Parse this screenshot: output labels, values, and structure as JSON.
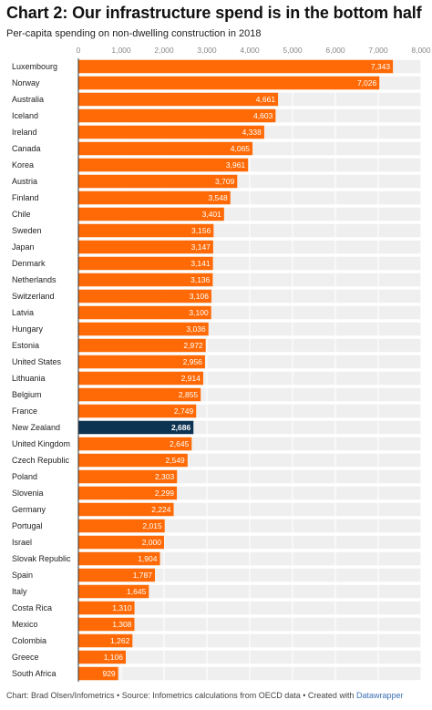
{
  "header": {
    "title": "Chart 2: Our infrastructure spend is in the bottom half",
    "subtitle": "Per-capita spending on non-dwelling construction in 2018"
  },
  "footer": {
    "text": "Chart: Brad Olsen/Infometrics • Source: Infometrics calculations from OECD data • Created with ",
    "tool": "Datawrapper"
  },
  "colors": {
    "bar": "#ff6a06",
    "highlight": "#0d3353",
    "row_bg": "#efefef",
    "grid": "#ffffff"
  },
  "chart_data": {
    "type": "bar",
    "orientation": "horizontal",
    "title": "Chart 2: Our infrastructure spend is in the bottom half",
    "subtitle": "Per-capita spending on non-dwelling construction in 2018",
    "xlim": [
      0,
      8000
    ],
    "ticks": [
      0,
      1000,
      2000,
      3000,
      4000,
      5000,
      6000,
      7000,
      8000
    ],
    "tick_labels": [
      "0",
      "1,000",
      "2,000",
      "3,000",
      "4,000",
      "5,000",
      "6,000",
      "7,000",
      "8,000"
    ],
    "tick_position": "top",
    "highlight": "New Zealand",
    "categories": [
      "Luxembourg",
      "Norway",
      "Australia",
      "Iceland",
      "Ireland",
      "Canada",
      "Korea",
      "Austria",
      "Finland",
      "Chile",
      "Sweden",
      "Japan",
      "Denmark",
      "Netherlands",
      "Switzerland",
      "Latvia",
      "Hungary",
      "Estonia",
      "United States",
      "Lithuania",
      "Belgium",
      "France",
      "New Zealand",
      "United Kingdom",
      "Czech Republic",
      "Poland",
      "Slovenia",
      "Germany",
      "Portugal",
      "Israel",
      "Slovak Republic",
      "Spain",
      "Italy",
      "Costa Rica",
      "Mexico",
      "Colombia",
      "Greece",
      "South Africa"
    ],
    "values": [
      7343,
      7026,
      4661,
      4603,
      4338,
      4065,
      3961,
      3709,
      3548,
      3401,
      3156,
      3147,
      3141,
      3136,
      3106,
      3100,
      3036,
      2972,
      2956,
      2914,
      2855,
      2749,
      2686,
      2645,
      2549,
      2303,
      2299,
      2224,
      2015,
      2000,
      1904,
      1787,
      1645,
      1310,
      1308,
      1262,
      1106,
      929
    ],
    "value_labels": [
      "7,343",
      "7,026",
      "4,661",
      "4,603",
      "4,338",
      "4,065",
      "3,961",
      "3,709",
      "3,548",
      "3,401",
      "3,156",
      "3,147",
      "3,141",
      "3,136",
      "3,106",
      "3,100",
      "3,036",
      "2,972",
      "2,956",
      "2,914",
      "2,855",
      "2,749",
      "2,686",
      "2,645",
      "2,549",
      "2,303",
      "2,299",
      "2,224",
      "2,015",
      "2,000",
      "1,904",
      "1,787",
      "1,645",
      "1,310",
      "1,308",
      "1,262",
      "1,106",
      "929"
    ]
  }
}
